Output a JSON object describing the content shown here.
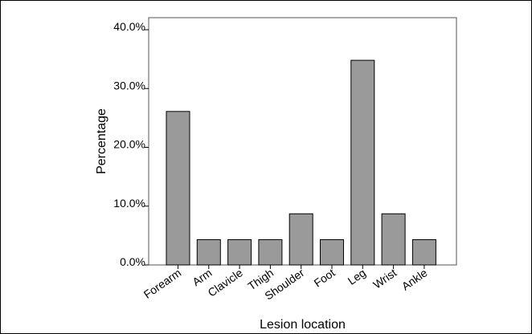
{
  "chart_data": {
    "type": "bar",
    "xlabel": "Lesion location",
    "ylabel": "Percentage",
    "categories": [
      "Forearm",
      "Arm",
      "Clavicle",
      "Thigh",
      "Shoulder",
      "Foot",
      "Leg",
      "Wrist",
      "Ankle"
    ],
    "values": [
      26.1,
      4.3,
      4.3,
      4.3,
      8.7,
      4.3,
      34.8,
      8.7,
      4.3
    ],
    "ylim": [
      0,
      40
    ],
    "yticks": [
      0,
      10,
      20,
      30,
      40
    ],
    "ytick_labels": [
      "0.0%",
      "10.0%",
      "20.0%",
      "30.0%",
      "40.0%"
    ],
    "grid": false,
    "bar_color": "#9a9a9a",
    "bar_edge_color": "#000000"
  }
}
